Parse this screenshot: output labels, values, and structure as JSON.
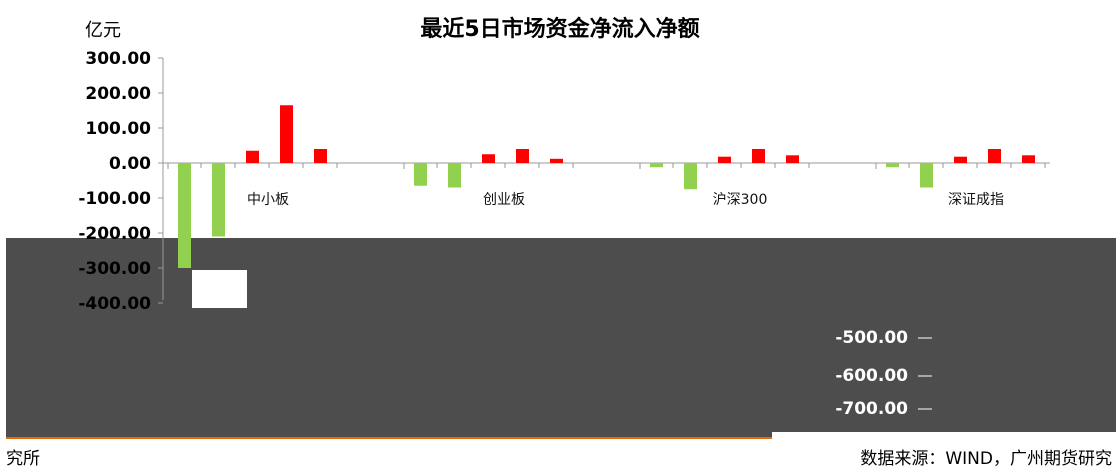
{
  "chart_data": {
    "type": "bar",
    "title": "最近5日市场资金净流入净额",
    "ylabel": "亿元",
    "ylim": [
      -400,
      300
    ],
    "ytick_values": [
      300,
      200,
      100,
      0,
      -100,
      -200,
      -300,
      -400
    ],
    "ytick_labels": [
      "300.00",
      "200.00",
      "100.00",
      "0.00",
      "-100.00",
      "-200.00",
      "-300.00",
      "-400.00"
    ],
    "lower_tick_labels": [
      "-500.00",
      "-600.00",
      "-700.00"
    ],
    "categories": [
      "中小板",
      "创业板",
      "沪深300",
      "深证成指"
    ],
    "days_per_category": 5,
    "colors": {
      "positive": "#ff0000",
      "negative": "#92d050",
      "panel": "#4d4d4d",
      "rule": "#e36c09"
    },
    "values": [
      [
        -300,
        -210,
        35,
        165,
        40
      ],
      [
        -65,
        -70,
        25,
        40,
        12
      ],
      [
        -12,
        -75,
        18,
        40,
        22
      ],
      [
        -12,
        -70,
        18,
        40,
        22
      ]
    ]
  },
  "footer": {
    "left": "究所",
    "right": "数据来源：WIND，广州期货研究"
  }
}
